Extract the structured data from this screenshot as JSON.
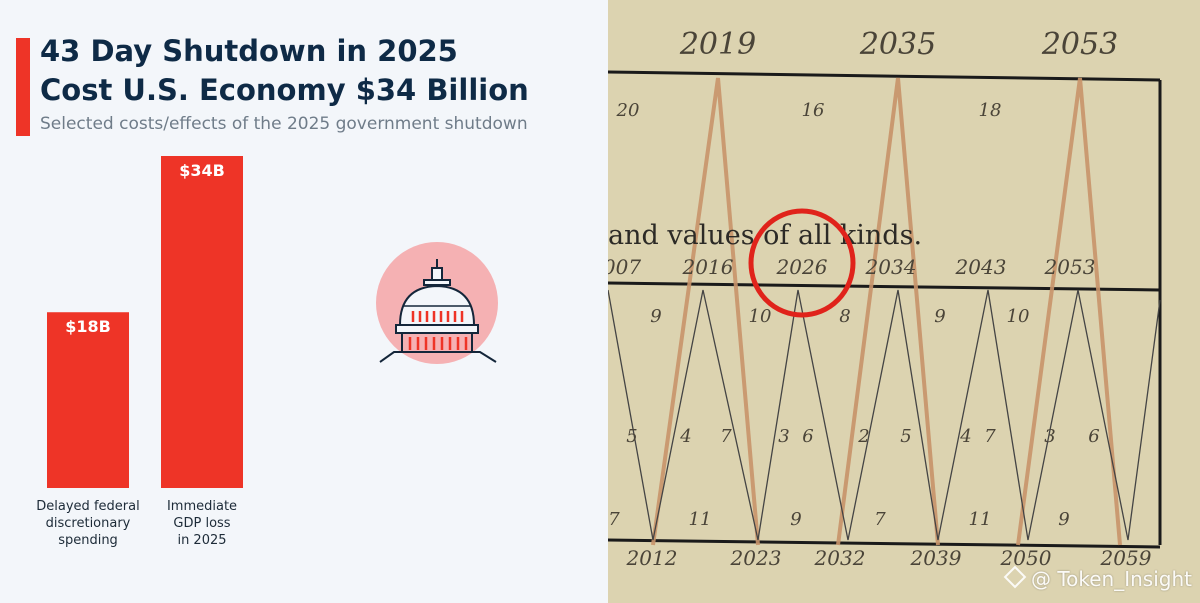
{
  "chart_data": {
    "type": "bar",
    "title_line1": "43 Day Shutdown in 2025",
    "title_line2": "Cost U.S. Economy $34 Billion",
    "subtitle": "Selected costs/effects of the 2025 government shutdown",
    "categories": [
      [
        "Delayed federal",
        "discretionary",
        "spending"
      ],
      [
        "Immediate",
        "GDP loss",
        "in 2025"
      ]
    ],
    "values": [
      18,
      34
    ],
    "value_labels": [
      "$18B",
      "$34B"
    ],
    "ylim": [
      0,
      34
    ],
    "grid": false,
    "bar_color": "#ee3427"
  },
  "colors": {
    "accent": "#ee3427",
    "title": "#0e2a46",
    "capitol_circle": "#f5b1b3"
  },
  "icons": [
    "capitol-building-icon"
  ],
  "benner_chart": {
    "top_years": [
      "2019",
      "2035",
      "2053"
    ],
    "top_gaps": [
      "20",
      "16",
      "18"
    ],
    "caption": "and values of all kinds.",
    "mid_years": [
      "007",
      "2016",
      "2026",
      "2034",
      "2043",
      "2053"
    ],
    "upper_gaps": [
      "9",
      "10",
      "8",
      "9",
      "10"
    ],
    "side_numbers": [
      "5",
      "4",
      "7",
      "3",
      "6",
      "2",
      "5",
      "4",
      "7",
      "3",
      "6"
    ],
    "lower_gaps": [
      "7",
      "11",
      "9",
      "7",
      "11",
      "9"
    ],
    "bottom_years": [
      "2012",
      "2023",
      "2032",
      "2039",
      "2050",
      "2059"
    ],
    "highlighted_year": "2026"
  },
  "watermark": "@ Token_Insight"
}
